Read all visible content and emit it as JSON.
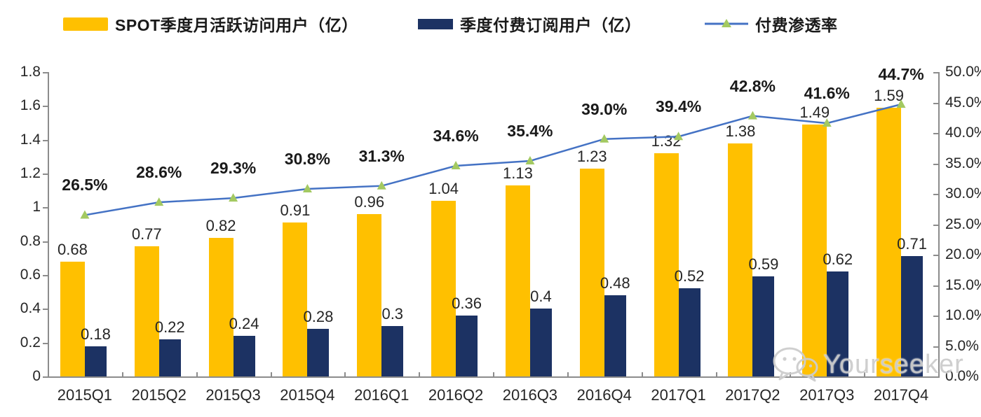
{
  "legend": [
    {
      "label": "SPOT季度月活跃访问用户（亿）",
      "color": "#FFC000",
      "type": "bar"
    },
    {
      "label": "季度付费订阅用户（亿）",
      "color": "#1C3263",
      "type": "bar"
    },
    {
      "label": "付费渗透率",
      "color": "#4472C4",
      "marker_color": "#A3C961",
      "type": "line"
    }
  ],
  "colors": {
    "mau_bar": "#FFC000",
    "paid_bar": "#1C3263",
    "line": "#4472C4",
    "marker": "#A3C961",
    "axis": "#8c8c8c",
    "text": "#262626",
    "watermark": "#cdcdcd"
  },
  "chart_data": {
    "type": "bar+line",
    "categories": [
      "2015Q1",
      "2015Q2",
      "2015Q3",
      "2015Q4",
      "2016Q1",
      "2016Q2",
      "2016Q3",
      "2016Q4",
      "2017Q1",
      "2017Q2",
      "2017Q3",
      "2017Q4"
    ],
    "series": [
      {
        "name": "SPOT季度月活跃访问用户（亿）",
        "type": "bar",
        "axis": "left",
        "color": "#FFC000",
        "values": [
          0.68,
          0.77,
          0.82,
          0.91,
          0.96,
          1.04,
          1.13,
          1.23,
          1.32,
          1.38,
          1.49,
          1.59
        ],
        "labels": [
          "0.68",
          "0.77",
          "0.82",
          "0.91",
          "0.96",
          "1.04",
          "1.13",
          "1.23",
          "1.32",
          "1.38",
          "1.49",
          "1.59"
        ]
      },
      {
        "name": "季度付费订阅用户（亿）",
        "type": "bar",
        "axis": "left",
        "color": "#1C3263",
        "values": [
          0.18,
          0.22,
          0.24,
          0.28,
          0.3,
          0.36,
          0.4,
          0.48,
          0.52,
          0.59,
          0.62,
          0.71
        ],
        "labels": [
          "0.18",
          "0.22",
          "0.24",
          "0.28",
          "0.3",
          "0.36",
          "0.4",
          "0.48",
          "0.52",
          "0.59",
          "0.62",
          "0.71"
        ]
      },
      {
        "name": "付费渗透率",
        "type": "line",
        "axis": "right",
        "color": "#4472C4",
        "marker": "triangle",
        "marker_color": "#A3C961",
        "values": [
          26.5,
          28.6,
          29.3,
          30.8,
          31.3,
          34.6,
          35.4,
          39.0,
          39.4,
          42.8,
          41.6,
          44.7
        ],
        "labels": [
          "26.5%",
          "28.6%",
          "29.3%",
          "30.8%",
          "31.3%",
          "34.6%",
          "35.4%",
          "39.0%",
          "39.4%",
          "42.8%",
          "41.6%",
          "44.7%"
        ]
      }
    ],
    "left_axis": {
      "min": 0,
      "max": 1.8,
      "step": 0.2,
      "ticks": [
        "0",
        "0.2",
        "0.4",
        "0.6",
        "0.8",
        "1",
        "1.2",
        "1.4",
        "1.6",
        "1.8"
      ]
    },
    "right_axis": {
      "min": 0,
      "max": 50,
      "step": 5,
      "ticks": [
        "0.0%",
        "5.0%",
        "10.0%",
        "15.0%",
        "20.0%",
        "25.0%",
        "30.0%",
        "35.0%",
        "40.0%",
        "45.0%",
        "50.0%"
      ]
    },
    "grid": false,
    "legend_position": "top",
    "title": ""
  },
  "watermark": {
    "text": "Yourseeker"
  }
}
